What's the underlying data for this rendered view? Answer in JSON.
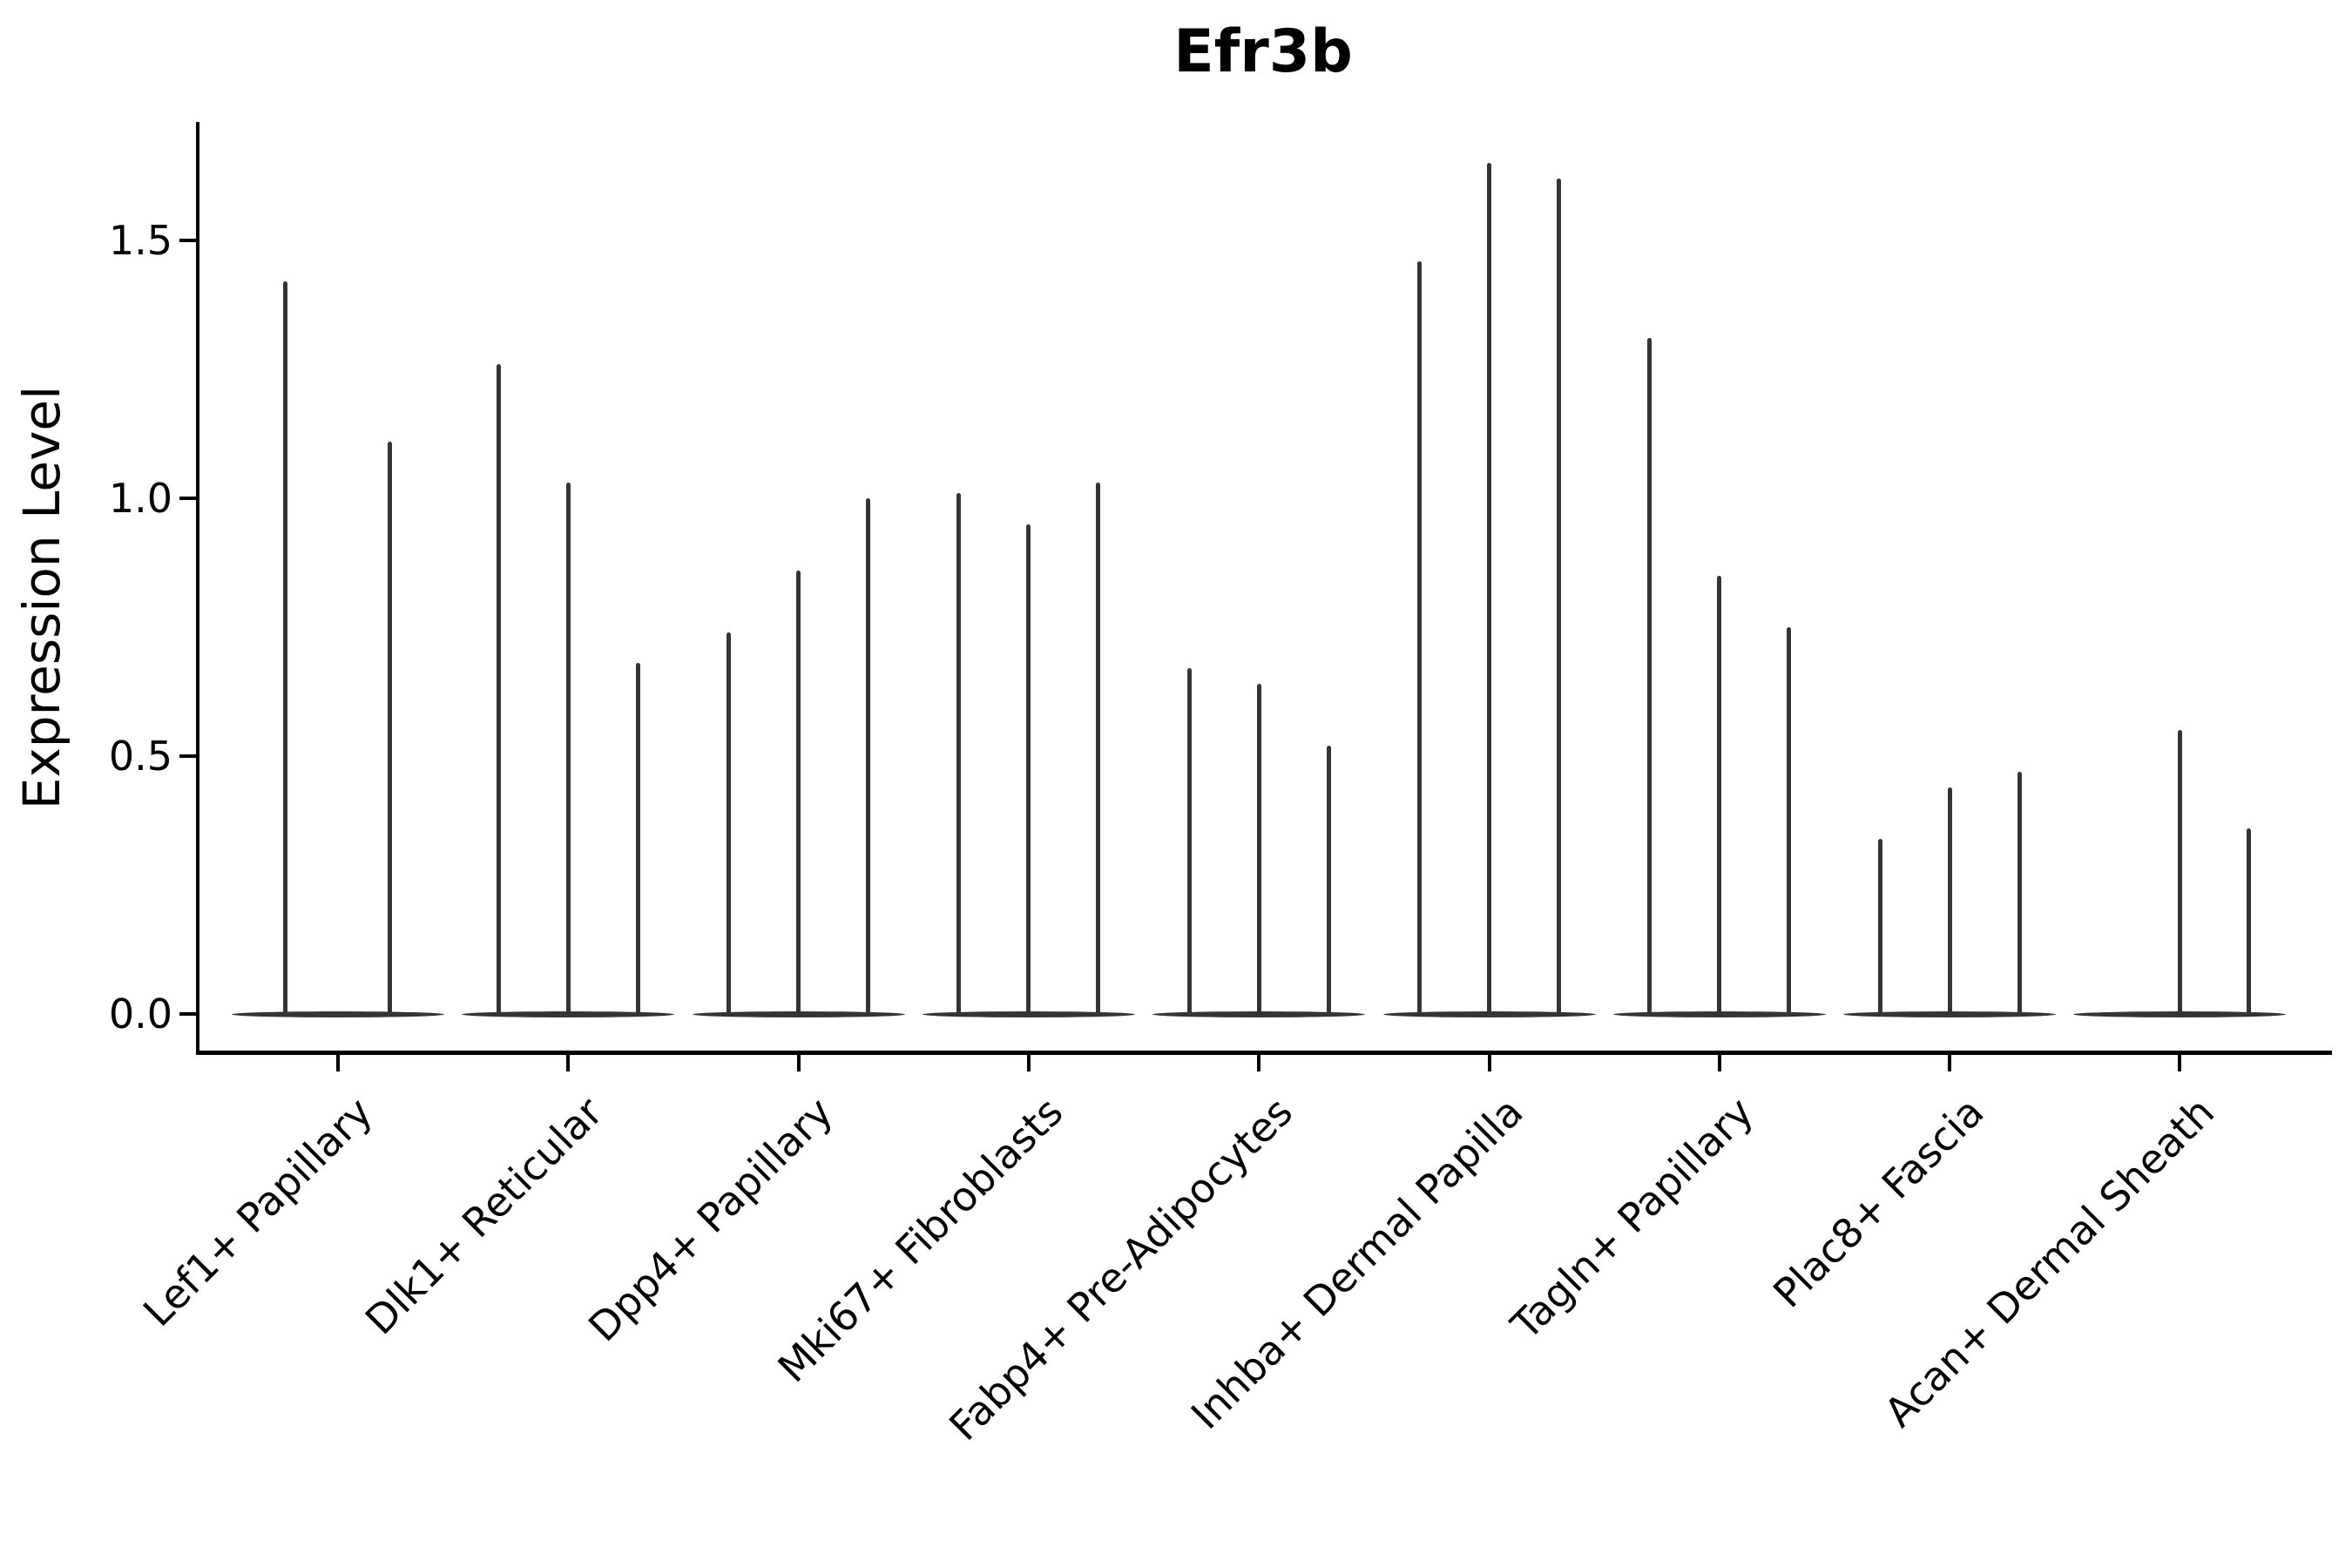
{
  "title": "Efr3b",
  "chart_data": {
    "type": "violin",
    "title": "Efr3b",
    "xlabel": "",
    "ylabel": "Expression Level",
    "ylim": [
      -0.08,
      1.8
    ],
    "yticks": [
      {
        "value": 0.0,
        "label": "0.0"
      },
      {
        "value": 0.5,
        "label": "0.5"
      },
      {
        "value": 1.0,
        "label": "1.0"
      },
      {
        "value": 1.5,
        "label": "1.5"
      }
    ],
    "grid": false,
    "legend_position": "none",
    "x_tick_rotation": 45,
    "categories": [
      "Lef1+ Papillary",
      "Dlk1+ Reticular",
      "Dpp4+ Papillary",
      "Mki67+ Fibroblasts",
      "Fabp4+ Pre-Adipocytes",
      "Inhba+ Dermal Papilla",
      "Tagln+ Papillary",
      "Plac8+ Fascia",
      "Acan+ Dermal Sheath"
    ],
    "groups": [
      {
        "label": "Lef1+ Papillary",
        "violins": [
          {
            "offset": -61,
            "peak": 1.42
          },
          {
            "offset": 59,
            "peak": 1.11
          }
        ]
      },
      {
        "label": "Dlk1+ Reticular",
        "violins": [
          {
            "offset": -80,
            "peak": 1.26
          },
          {
            "offset": 0,
            "peak": 1.03
          },
          {
            "offset": 80,
            "peak": 0.68
          }
        ]
      },
      {
        "label": "Dpp4+ Papillary",
        "violins": [
          {
            "offset": -80,
            "peak": 0.74
          },
          {
            "offset": 0,
            "peak": 0.86
          },
          {
            "offset": 80,
            "peak": 1.0
          }
        ]
      },
      {
        "label": "Mki67+ Fibroblasts",
        "violins": [
          {
            "offset": -80,
            "peak": 1.01
          },
          {
            "offset": 0,
            "peak": 0.95
          },
          {
            "offset": 80,
            "peak": 1.03
          }
        ]
      },
      {
        "label": "Fabp4+ Pre-Adipocytes",
        "violins": [
          {
            "offset": -80,
            "peak": 0.67
          },
          {
            "offset": 0,
            "peak": 0.64
          },
          {
            "offset": 80,
            "peak": 0.52
          }
        ]
      },
      {
        "label": "Inhba+ Dermal Papilla",
        "violins": [
          {
            "offset": -80,
            "peak": 1.46
          },
          {
            "offset": 0,
            "peak": 1.65
          },
          {
            "offset": 80,
            "peak": 1.62
          }
        ]
      },
      {
        "label": "Tagln+ Papillary",
        "violins": [
          {
            "offset": -80,
            "peak": 1.31
          },
          {
            "offset": 0,
            "peak": 0.85
          },
          {
            "offset": 80,
            "peak": 0.75
          }
        ]
      },
      {
        "label": "Plac8+ Fascia",
        "violins": [
          {
            "offset": -80,
            "peak": 0.34
          },
          {
            "offset": 0,
            "peak": 0.44
          },
          {
            "offset": 80,
            "peak": 0.47
          }
        ]
      },
      {
        "label": "Acan+ Dermal Sheath",
        "violins": [
          {
            "offset": 0,
            "peak": 0.55
          },
          {
            "offset": 79,
            "peak": 0.36
          }
        ]
      }
    ],
    "colors": {
      "violin": "#343434",
      "axis": "#000000",
      "background": "#ffffff"
    }
  }
}
